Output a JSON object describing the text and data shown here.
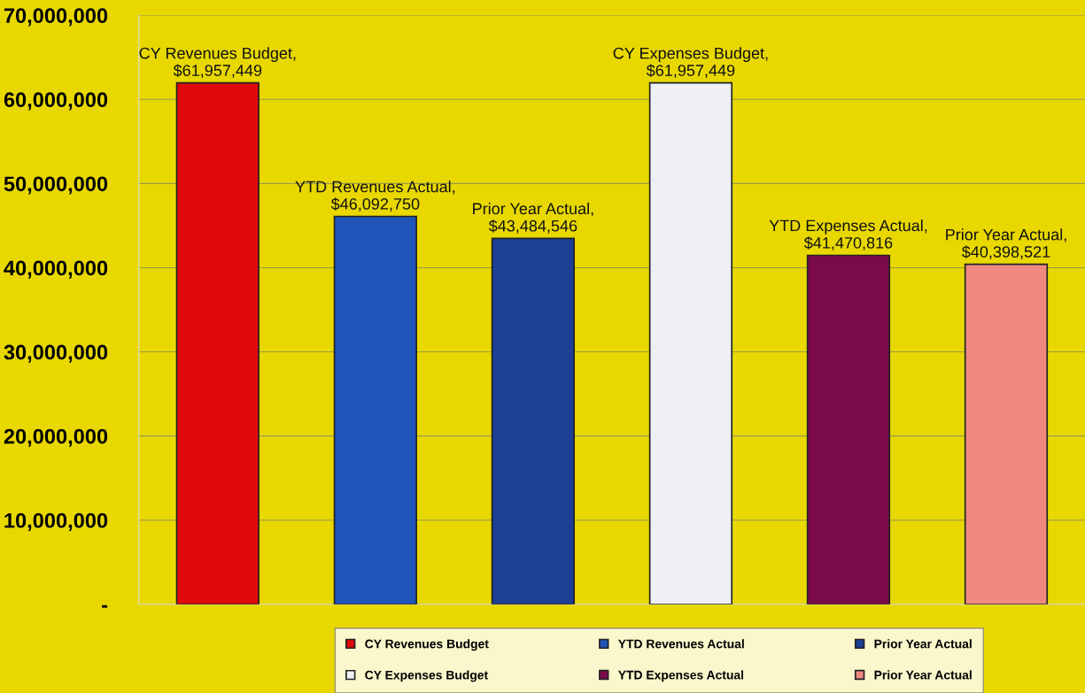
{
  "chart_data": {
    "type": "bar",
    "categories": [
      null,
      null,
      null,
      null,
      null,
      null
    ],
    "series": [
      {
        "name": "CY Revenues Budget",
        "color": "#e00a0a",
        "values": [
          61957449,
          null,
          null,
          null,
          null,
          null
        ],
        "value_labels": [
          "CY Revenues Budget,\n$61,957,449",
          null,
          null,
          null,
          null,
          null
        ]
      },
      {
        "name": "YTD Revenues Actual",
        "color": "#1f55b8",
        "values": [
          null,
          46092750,
          null,
          null,
          null,
          null
        ],
        "value_labels": [
          null,
          "YTD Revenues Actual,\n$46,092,750",
          null,
          null,
          null,
          null
        ]
      },
      {
        "name": "Prior Year Actual",
        "color": "#1d3f94",
        "values": [
          null,
          null,
          43484546,
          null,
          null,
          null
        ],
        "value_labels": [
          null,
          null,
          "Prior Year Actual,\n$43,484,546",
          null,
          null,
          null
        ]
      },
      {
        "name": "CY Expenses Budget",
        "color": "#eef0f6",
        "values": [
          null,
          null,
          null,
          61957449,
          null,
          null
        ],
        "value_labels": [
          null,
          null,
          null,
          "CY Expenses Budget,\n$61,957,449",
          null,
          null
        ]
      },
      {
        "name": "YTD Expenses Actual",
        "color": "#7a0a4a",
        "values": [
          null,
          null,
          null,
          null,
          41470816,
          null
        ],
        "value_labels": [
          null,
          null,
          null,
          null,
          "YTD Expenses Actual,\n$41,470,816",
          null
        ]
      },
      {
        "name": "Prior Year Actual",
        "color": "#f08a80",
        "values": [
          null,
          null,
          null,
          null,
          null,
          40398521
        ],
        "value_labels": [
          null,
          null,
          null,
          null,
          null,
          "Prior Year Actual,\n$40,398,521"
        ]
      }
    ],
    "ylim": [
      0,
      70000000
    ],
    "yticks": [
      {
        "value": 0,
        "label": "-"
      },
      {
        "value": 10000000,
        "label": "10,000,000"
      },
      {
        "value": 20000000,
        "label": "20,000,000"
      },
      {
        "value": 30000000,
        "label": "30,000,000"
      },
      {
        "value": 40000000,
        "label": "40,000,000"
      },
      {
        "value": 50000000,
        "label": "50,000,000"
      },
      {
        "value": 60000000,
        "label": "60,000,000"
      },
      {
        "value": 70000000,
        "label": "70,000,000"
      }
    ],
    "grid": "y",
    "legend": "bottom"
  }
}
